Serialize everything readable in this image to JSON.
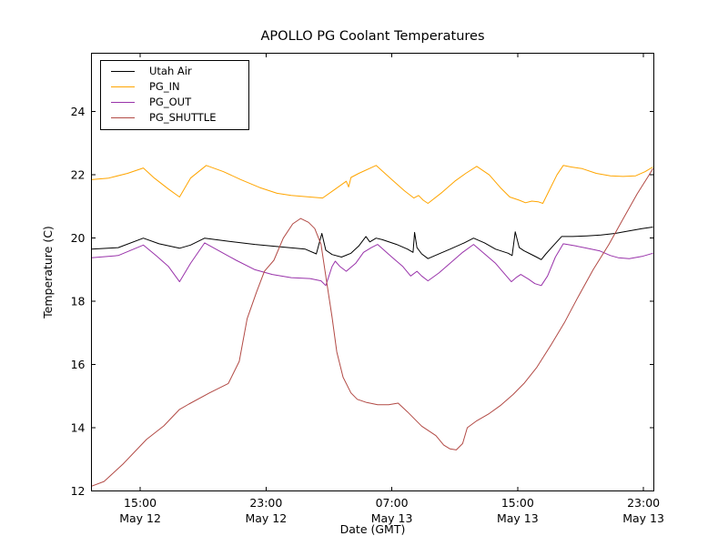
{
  "figure": {
    "title": "APOLLO PG Coolant Temperatures",
    "xlabel": "Date (GMT)",
    "ylabel": "Temperature (C)",
    "background_color": "#ffffff",
    "axes_color": "#000000"
  },
  "chart_data": {
    "type": "line",
    "title": "APOLLO PG Coolant Temperatures",
    "xlabel": "Date (GMT)",
    "ylabel": "Temperature (C)",
    "grid": false,
    "legend_position": "upper left",
    "x_unit": "hours since May 12 00:00 GMT",
    "xlim": [
      11.9,
      47.66
    ],
    "ylim": [
      12,
      25.85
    ],
    "y_ticks": [
      12,
      14,
      16,
      18,
      20,
      22,
      24
    ],
    "x_ticks": [
      {
        "t": 15,
        "time": "15:00",
        "date": "May 12"
      },
      {
        "t": 23,
        "time": "23:00",
        "date": "May 12"
      },
      {
        "t": 31,
        "time": "07:00",
        "date": "May 13"
      },
      {
        "t": 39,
        "time": "15:00",
        "date": "May 13"
      },
      {
        "t": 47,
        "time": "23:00",
        "date": "May 13"
      }
    ],
    "series": [
      {
        "name": "Utah Air",
        "color": "#000000",
        "points": [
          [
            11.9,
            19.65
          ],
          [
            13.6,
            19.7
          ],
          [
            15.2,
            20.0
          ],
          [
            16.2,
            19.82
          ],
          [
            17.5,
            19.68
          ],
          [
            18.2,
            19.78
          ],
          [
            19.1,
            20.0
          ],
          [
            20.6,
            19.9
          ],
          [
            22.3,
            19.8
          ],
          [
            24.0,
            19.72
          ],
          [
            25.5,
            19.65
          ],
          [
            26.2,
            19.5
          ],
          [
            26.55,
            20.15
          ],
          [
            26.8,
            19.62
          ],
          [
            27.2,
            19.48
          ],
          [
            27.8,
            19.4
          ],
          [
            28.4,
            19.52
          ],
          [
            28.9,
            19.75
          ],
          [
            29.35,
            20.05
          ],
          [
            29.6,
            19.88
          ],
          [
            30.0,
            20.0
          ],
          [
            30.4,
            19.95
          ],
          [
            31.3,
            19.8
          ],
          [
            32.0,
            19.65
          ],
          [
            32.35,
            19.55
          ],
          [
            32.45,
            20.18
          ],
          [
            32.6,
            19.7
          ],
          [
            32.9,
            19.5
          ],
          [
            33.3,
            19.35
          ],
          [
            33.9,
            19.48
          ],
          [
            34.7,
            19.65
          ],
          [
            35.6,
            19.85
          ],
          [
            36.2,
            20.0
          ],
          [
            36.9,
            19.85
          ],
          [
            37.6,
            19.65
          ],
          [
            38.4,
            19.52
          ],
          [
            38.65,
            19.45
          ],
          [
            38.85,
            20.2
          ],
          [
            39.1,
            19.7
          ],
          [
            39.4,
            19.6
          ],
          [
            39.8,
            19.5
          ],
          [
            40.2,
            19.4
          ],
          [
            40.5,
            19.32
          ],
          [
            40.8,
            19.5
          ],
          [
            41.3,
            19.78
          ],
          [
            41.8,
            20.05
          ],
          [
            42.5,
            20.05
          ],
          [
            43.4,
            20.07
          ],
          [
            44.3,
            20.1
          ],
          [
            45.2,
            20.15
          ],
          [
            46.0,
            20.22
          ],
          [
            46.9,
            20.3
          ],
          [
            47.6,
            20.35
          ]
        ]
      },
      {
        "name": "PG_IN",
        "color": "#ffa500",
        "points": [
          [
            11.9,
            21.85
          ],
          [
            13.0,
            21.9
          ],
          [
            14.2,
            22.05
          ],
          [
            15.2,
            22.22
          ],
          [
            15.9,
            21.9
          ],
          [
            16.8,
            21.55
          ],
          [
            17.5,
            21.3
          ],
          [
            18.2,
            21.9
          ],
          [
            19.2,
            22.3
          ],
          [
            20.3,
            22.1
          ],
          [
            21.4,
            21.85
          ],
          [
            22.6,
            21.6
          ],
          [
            23.7,
            21.42
          ],
          [
            24.6,
            21.35
          ],
          [
            25.8,
            21.3
          ],
          [
            26.6,
            21.27
          ],
          [
            27.4,
            21.55
          ],
          [
            28.1,
            21.8
          ],
          [
            28.25,
            21.62
          ],
          [
            28.4,
            21.92
          ],
          [
            28.9,
            22.05
          ],
          [
            30.0,
            22.3
          ],
          [
            31.0,
            21.85
          ],
          [
            31.8,
            21.5
          ],
          [
            32.4,
            21.27
          ],
          [
            32.7,
            21.35
          ],
          [
            33.0,
            21.2
          ],
          [
            33.3,
            21.1
          ],
          [
            34.2,
            21.45
          ],
          [
            35.0,
            21.8
          ],
          [
            35.7,
            22.05
          ],
          [
            36.4,
            22.27
          ],
          [
            37.2,
            22.0
          ],
          [
            37.9,
            21.6
          ],
          [
            38.5,
            21.3
          ],
          [
            39.1,
            21.2
          ],
          [
            39.5,
            21.12
          ],
          [
            39.9,
            21.17
          ],
          [
            40.3,
            21.15
          ],
          [
            40.6,
            21.1
          ],
          [
            41.1,
            21.6
          ],
          [
            41.5,
            22.0
          ],
          [
            41.9,
            22.3
          ],
          [
            42.4,
            22.25
          ],
          [
            43.1,
            22.2
          ],
          [
            44.0,
            22.05
          ],
          [
            44.9,
            21.97
          ],
          [
            45.7,
            21.95
          ],
          [
            46.5,
            21.97
          ],
          [
            47.1,
            22.1
          ],
          [
            47.6,
            22.25
          ]
        ]
      },
      {
        "name": "PG_OUT",
        "color": "#9933aa",
        "points": [
          [
            11.9,
            19.38
          ],
          [
            13.6,
            19.45
          ],
          [
            15.2,
            19.78
          ],
          [
            16.0,
            19.45
          ],
          [
            16.8,
            19.1
          ],
          [
            17.5,
            18.62
          ],
          [
            18.2,
            19.2
          ],
          [
            19.1,
            19.85
          ],
          [
            20.0,
            19.6
          ],
          [
            21.1,
            19.3
          ],
          [
            22.3,
            19.0
          ],
          [
            23.4,
            18.85
          ],
          [
            24.6,
            18.75
          ],
          [
            25.8,
            18.72
          ],
          [
            26.5,
            18.65
          ],
          [
            26.8,
            18.5
          ],
          [
            27.2,
            19.1
          ],
          [
            27.4,
            19.27
          ],
          [
            27.7,
            19.1
          ],
          [
            28.1,
            18.95
          ],
          [
            28.7,
            19.2
          ],
          [
            29.2,
            19.55
          ],
          [
            29.7,
            19.7
          ],
          [
            30.1,
            19.8
          ],
          [
            31.0,
            19.4
          ],
          [
            31.7,
            19.1
          ],
          [
            32.2,
            18.8
          ],
          [
            32.6,
            18.95
          ],
          [
            32.9,
            18.8
          ],
          [
            33.3,
            18.65
          ],
          [
            34.0,
            18.9
          ],
          [
            34.7,
            19.2
          ],
          [
            35.5,
            19.55
          ],
          [
            36.2,
            19.8
          ],
          [
            36.9,
            19.5
          ],
          [
            37.6,
            19.2
          ],
          [
            38.2,
            18.85
          ],
          [
            38.6,
            18.62
          ],
          [
            38.9,
            18.75
          ],
          [
            39.2,
            18.85
          ],
          [
            39.7,
            18.7
          ],
          [
            40.1,
            18.56
          ],
          [
            40.5,
            18.5
          ],
          [
            40.9,
            18.8
          ],
          [
            41.4,
            19.4
          ],
          [
            41.9,
            19.82
          ],
          [
            42.7,
            19.75
          ],
          [
            43.4,
            19.68
          ],
          [
            44.2,
            19.6
          ],
          [
            44.9,
            19.45
          ],
          [
            45.4,
            19.38
          ],
          [
            46.1,
            19.35
          ],
          [
            46.9,
            19.42
          ],
          [
            47.6,
            19.52
          ]
        ]
      },
      {
        "name": "PG_SHUTTLE",
        "color": "#b24a45",
        "points": [
          [
            11.9,
            12.15
          ],
          [
            12.7,
            12.3
          ],
          [
            13.9,
            12.85
          ],
          [
            15.4,
            13.63
          ],
          [
            16.5,
            14.06
          ],
          [
            17.5,
            14.58
          ],
          [
            18.1,
            14.75
          ],
          [
            19.4,
            15.1
          ],
          [
            20.6,
            15.4
          ],
          [
            21.3,
            16.1
          ],
          [
            21.8,
            17.45
          ],
          [
            22.4,
            18.3
          ],
          [
            22.9,
            18.95
          ],
          [
            23.5,
            19.3
          ],
          [
            24.1,
            20.0
          ],
          [
            24.7,
            20.45
          ],
          [
            25.2,
            20.62
          ],
          [
            25.7,
            20.5
          ],
          [
            26.1,
            20.3
          ],
          [
            26.5,
            19.8
          ],
          [
            26.8,
            18.8
          ],
          [
            27.2,
            17.5
          ],
          [
            27.5,
            16.4
          ],
          [
            27.9,
            15.6
          ],
          [
            28.4,
            15.1
          ],
          [
            28.8,
            14.9
          ],
          [
            29.4,
            14.8
          ],
          [
            30.1,
            14.73
          ],
          [
            30.8,
            14.73
          ],
          [
            31.4,
            14.78
          ],
          [
            32.0,
            14.5
          ],
          [
            32.9,
            14.05
          ],
          [
            33.8,
            13.75
          ],
          [
            34.3,
            13.45
          ],
          [
            34.7,
            13.33
          ],
          [
            35.1,
            13.3
          ],
          [
            35.5,
            13.5
          ],
          [
            35.8,
            14.0
          ],
          [
            36.4,
            14.22
          ],
          [
            37.2,
            14.45
          ],
          [
            37.9,
            14.7
          ],
          [
            38.7,
            15.05
          ],
          [
            39.4,
            15.4
          ],
          [
            40.2,
            15.9
          ],
          [
            41.1,
            16.6
          ],
          [
            42.0,
            17.35
          ],
          [
            42.8,
            18.1
          ],
          [
            43.8,
            19.0
          ],
          [
            44.8,
            19.8
          ],
          [
            45.7,
            20.6
          ],
          [
            46.6,
            21.4
          ],
          [
            47.3,
            21.95
          ],
          [
            47.6,
            22.2
          ]
        ]
      }
    ]
  },
  "legend": {
    "entries": [
      {
        "label": "Utah Air"
      },
      {
        "label": "PG_IN"
      },
      {
        "label": "PG_OUT"
      },
      {
        "label": "PG_SHUTTLE"
      }
    ]
  }
}
